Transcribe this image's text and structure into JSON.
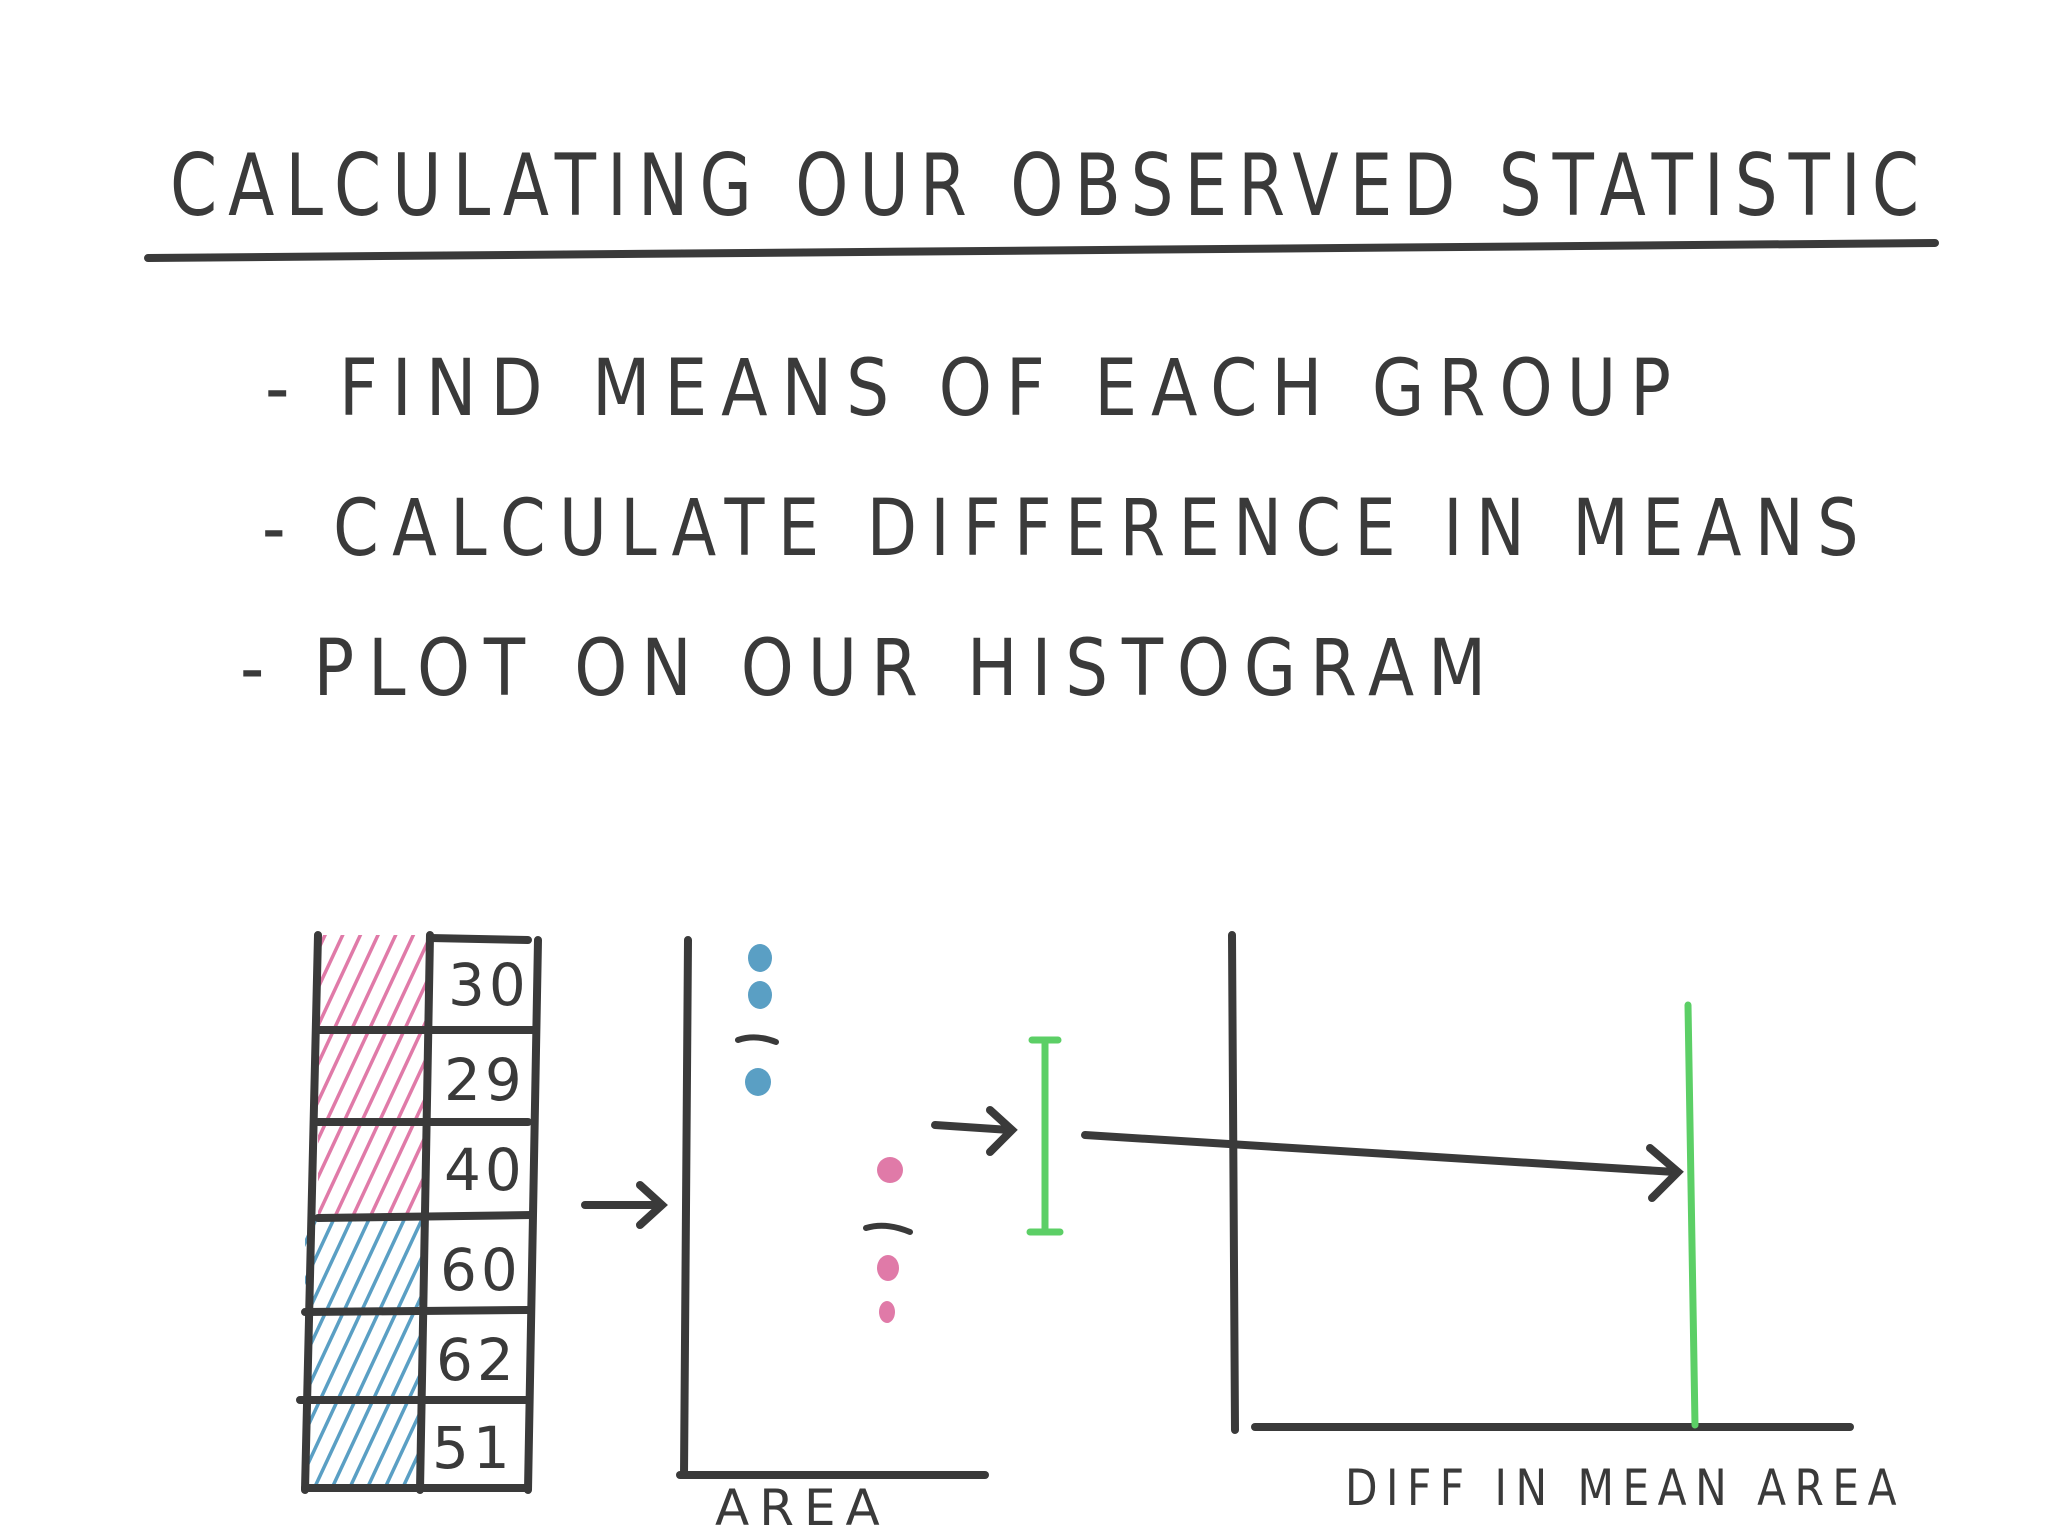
{
  "title": "CALCULATING OUR OBSERVED STATISTIC",
  "bullets": [
    "- FIND MEANS OF EACH GROUP",
    "- CALCULATE DIFFERENCE IN MEANS",
    "- PLOT ON OUR HISTOGRAM"
  ],
  "table": {
    "rows": [
      {
        "value": "30",
        "group": "pink"
      },
      {
        "value": "29",
        "group": "pink"
      },
      {
        "value": "40",
        "group": "pink"
      },
      {
        "value": "60",
        "group": "blue"
      },
      {
        "value": "62",
        "group": "blue"
      },
      {
        "value": "51",
        "group": "blue"
      }
    ]
  },
  "dot_plot": {
    "xlabel": "AREA"
  },
  "histogram": {
    "xlabel": "DIFF IN MEAN AREA"
  },
  "colors": {
    "ink": "#3a3a3a",
    "pink": "#e07aa8",
    "blue": "#5a9fc4",
    "green": "#5ccf66"
  }
}
